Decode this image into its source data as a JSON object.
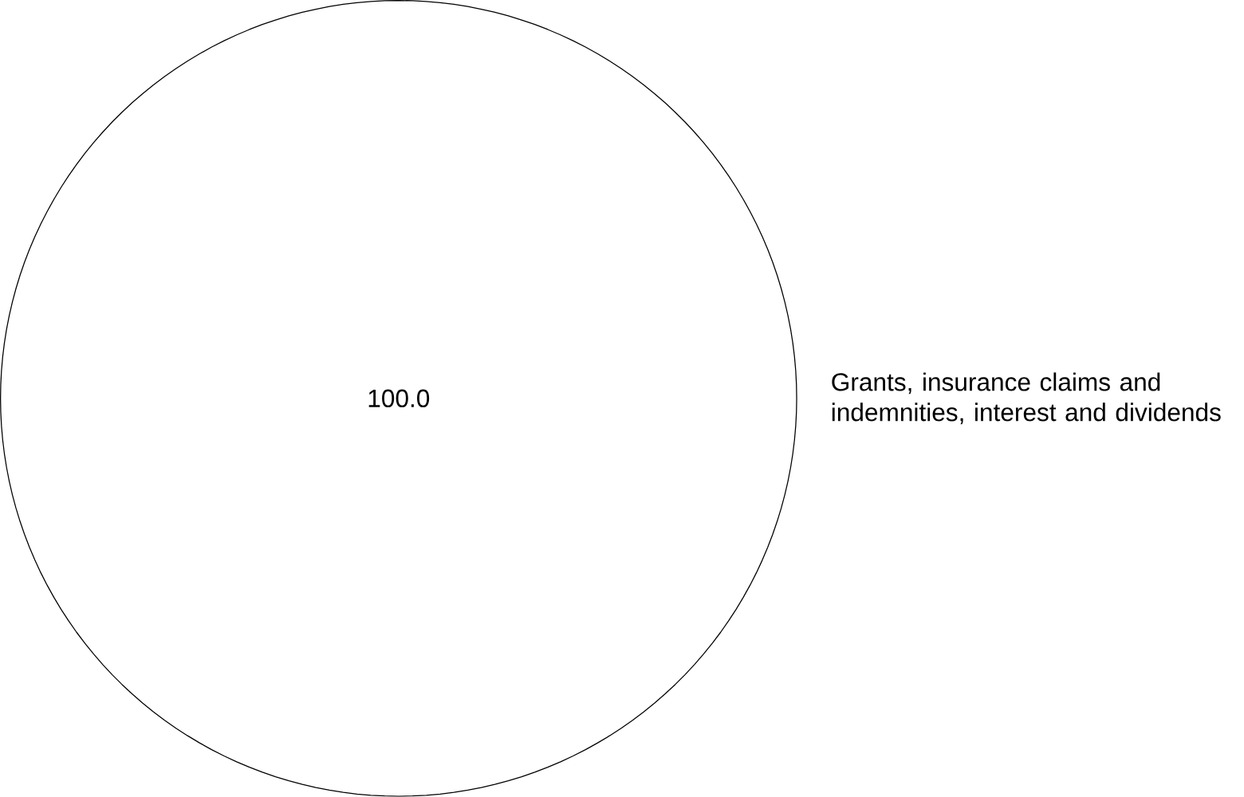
{
  "chart_data": {
    "type": "pie",
    "categories": [
      "Grants, insurance claims and indemnities, interest and dividends"
    ],
    "values": [
      100.0
    ],
    "value_labels": [
      "100.0"
    ],
    "colors": [
      "#ffffff"
    ]
  }
}
